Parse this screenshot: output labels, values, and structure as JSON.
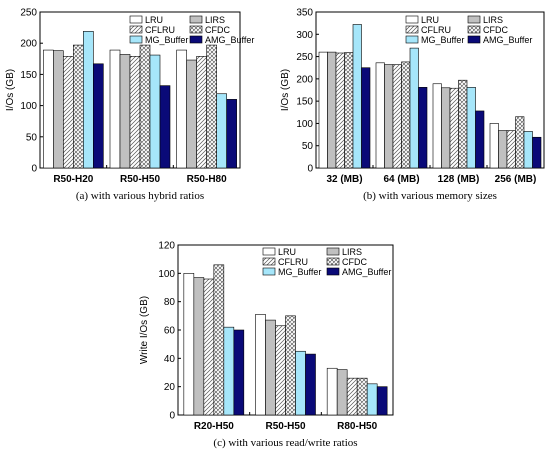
{
  "chart_data": [
    {
      "type": "bar",
      "caption": "(a) with various hybrid ratios",
      "ylabel": "I/Os (GB)",
      "xlabel": "",
      "ylim": [
        0,
        250
      ],
      "yticks": [
        0,
        50,
        100,
        150,
        200,
        250
      ],
      "categories": [
        "R50-H20",
        "R50-H50",
        "R50-H80"
      ],
      "legend_position": "top-right",
      "series": [
        {
          "name": "LRU",
          "values": [
            189,
            189,
            189
          ]
        },
        {
          "name": "LIRS",
          "values": [
            188,
            182,
            173
          ]
        },
        {
          "name": "CFLRU",
          "values": [
            179,
            179,
            179
          ]
        },
        {
          "name": "CFDC",
          "values": [
            197,
            197,
            197
          ]
        },
        {
          "name": "MG_Buffer",
          "values": [
            219,
            181,
            119
          ]
        },
        {
          "name": "AMG_Buffer",
          "values": [
            167,
            132,
            110
          ]
        }
      ]
    },
    {
      "type": "bar",
      "caption": "(b) with various memory sizes",
      "ylabel": "I/Os (GB)",
      "xlabel": "",
      "ylim": [
        0,
        350
      ],
      "yticks": [
        0,
        50,
        100,
        150,
        200,
        250,
        300,
        350
      ],
      "categories": [
        "32 (MB)",
        "64 (MB)",
        "128 (MB)",
        "256 (MB)"
      ],
      "legend_position": "top-right",
      "series": [
        {
          "name": "LRU",
          "values": [
            260,
            236,
            189,
            100
          ]
        },
        {
          "name": "LIRS",
          "values": [
            260,
            232,
            180,
            84
          ]
        },
        {
          "name": "CFLRU",
          "values": [
            258,
            232,
            179,
            84
          ]
        },
        {
          "name": "CFDC",
          "values": [
            259,
            238,
            197,
            115
          ]
        },
        {
          "name": "MG_Buffer",
          "values": [
            322,
            269,
            181,
            82
          ]
        },
        {
          "name": "AMG_Buffer",
          "values": [
            225,
            181,
            128,
            69
          ]
        }
      ]
    },
    {
      "type": "bar",
      "caption": "(c) with various read/write ratios",
      "ylabel": "Write I/Os (GB)",
      "xlabel": "",
      "ylim": [
        0,
        120
      ],
      "yticks": [
        0,
        20,
        40,
        60,
        80,
        100,
        120
      ],
      "categories": [
        "R20-H50",
        "R50-H50",
        "R80-H50"
      ],
      "legend_position": "top-right",
      "series": [
        {
          "name": "LRU",
          "values": [
            100,
            71,
            33
          ]
        },
        {
          "name": "LIRS",
          "values": [
            97,
            67,
            32
          ]
        },
        {
          "name": "CFLRU",
          "values": [
            96,
            63,
            26
          ]
        },
        {
          "name": "CFDC",
          "values": [
            106,
            70,
            26
          ]
        },
        {
          "name": "MG_Buffer",
          "values": [
            62,
            45,
            22
          ]
        },
        {
          "name": "AMG_Buffer",
          "values": [
            60,
            43,
            20
          ]
        }
      ]
    }
  ],
  "series_styles": [
    {
      "fill": "#ffffff",
      "pattern": "none"
    },
    {
      "fill": "#c0c0c0",
      "pattern": "none"
    },
    {
      "fill": "#ffffff",
      "pattern": "hatch"
    },
    {
      "fill": "#ffffff",
      "pattern": "crosshatch"
    },
    {
      "fill": "#a6e6fa",
      "pattern": "none"
    },
    {
      "fill": "#0a0a78",
      "pattern": "none"
    }
  ]
}
